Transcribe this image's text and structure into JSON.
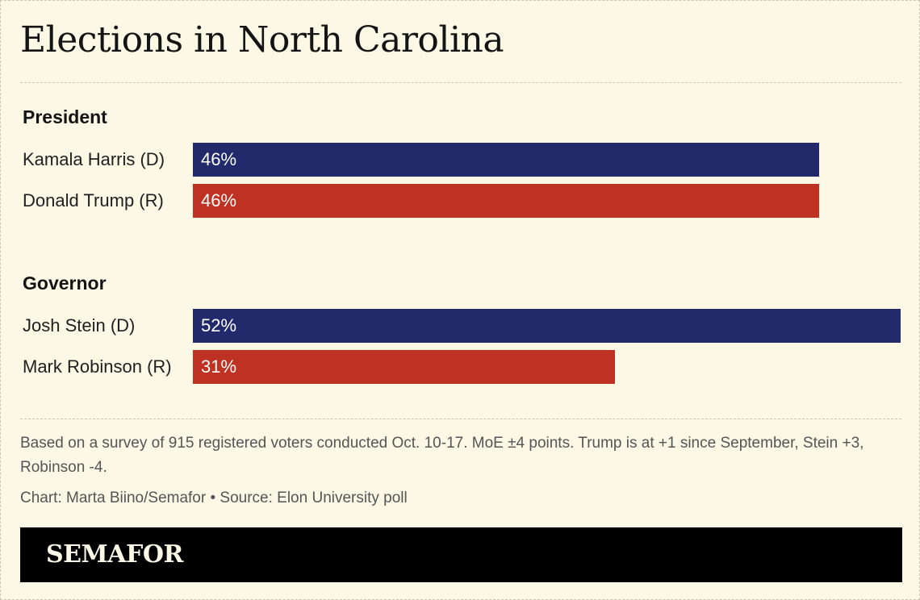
{
  "header": {
    "title": "Elections in North Carolina"
  },
  "chart_data": {
    "type": "bar",
    "orientation": "horizontal",
    "xlim": [
      0,
      52
    ],
    "groups": [
      {
        "label": "President",
        "items": [
          {
            "name": "Kamala Harris (D)",
            "value": 46,
            "value_label": "46%",
            "color": "#222a6b"
          },
          {
            "name": "Donald Trump (R)",
            "value": 46,
            "value_label": "46%",
            "color": "#bd3222"
          }
        ]
      },
      {
        "label": "Governor",
        "items": [
          {
            "name": "Josh Stein (D)",
            "value": 52,
            "value_label": "52%",
            "color": "#222a6b"
          },
          {
            "name": "Mark Robinson (R)",
            "value": 31,
            "value_label": "31%",
            "color": "#bd3222"
          }
        ]
      }
    ]
  },
  "footer": {
    "note": "Based on a survey of 915 registered voters conducted Oct. 10-17. MoE ±4 points. Trump is at +1 since September, Stein +3, Robinson -4.",
    "credit": "Chart: Marta Biino/Semafor • Source: Elon University poll",
    "brand": "SEMAFOR"
  }
}
